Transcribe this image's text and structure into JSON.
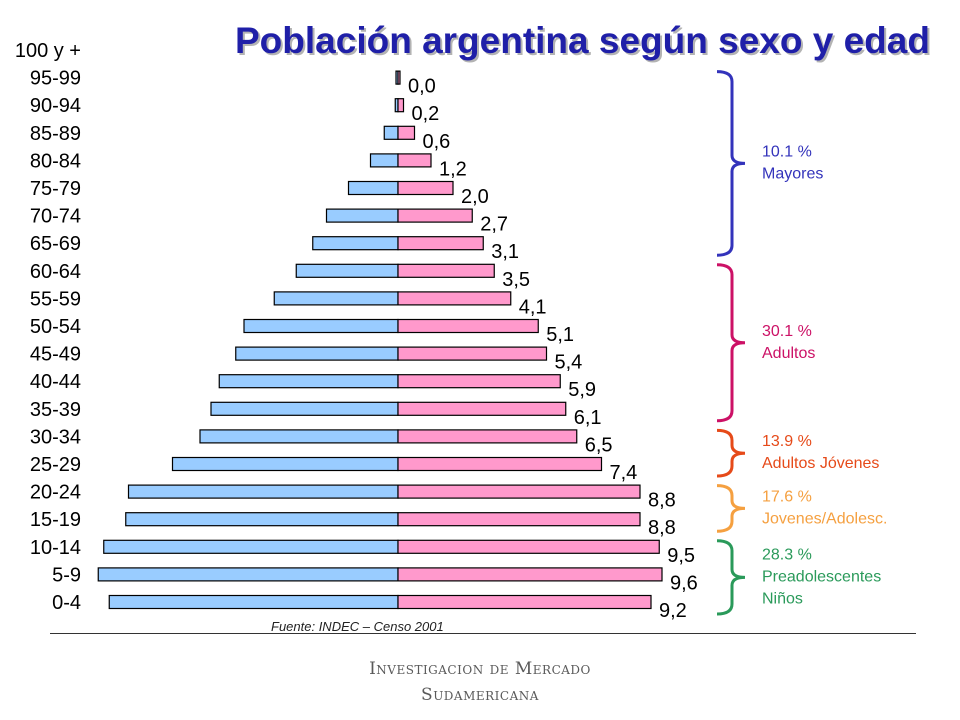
{
  "title": "Población argentina según sexo y edad",
  "source": "Fuente: INDEC – Censo 2001",
  "logo": {
    "line1": "Investigacion de Mercado",
    "line2": "Sudamericana"
  },
  "colors": {
    "male": "#99ccff",
    "female": "#ff99cc",
    "title": "#1f1fa8"
  },
  "chart_data": {
    "type": "bar",
    "categories": [
      "100 y +",
      "95-99",
      "90-94",
      "85-89",
      "80-84",
      "75-79",
      "70-74",
      "65-69",
      "60-64",
      "55-59",
      "50-54",
      "45-49",
      "40-44",
      "35-39",
      "30-34",
      "25-29",
      "20-24",
      "15-19",
      "10-14",
      "5-9",
      "0-4"
    ],
    "series": [
      {
        "values": [
          null,
          0.05,
          0.1,
          0.5,
          1.0,
          1.8,
          2.6,
          3.1,
          3.7,
          4.5,
          5.6,
          5.9,
          6.5,
          6.8,
          7.2,
          8.2,
          9.8,
          9.9,
          10.7,
          10.9,
          10.5
        ]
      },
      {
        "values": [
          null,
          0.0,
          0.2,
          0.6,
          1.2,
          2.0,
          2.7,
          3.1,
          3.5,
          4.1,
          5.1,
          5.4,
          5.9,
          6.1,
          6.5,
          7.4,
          8.8,
          8.8,
          9.5,
          9.6,
          9.2
        ]
      }
    ],
    "value_labels": [
      null,
      "0,0",
      "0,2",
      "0,6",
      "1,2",
      "2,0",
      "2,7",
      "3,1",
      "3,5",
      "4,1",
      "5,1",
      "5,4",
      "5,9",
      "6,1",
      "6,5",
      "7,4",
      "8,8",
      "8,8",
      "9,5",
      "9,6",
      "9,2"
    ],
    "segments": [
      {
        "pct": "10.1 %",
        "label": "Mayores",
        "color": "#3333bb",
        "from": "95-99",
        "to": "65-69"
      },
      {
        "pct": "30.1 %",
        "label": "Adultos",
        "color": "#cc1166",
        "from": "60-64",
        "to": "35-39"
      },
      {
        "pct": "13.9 %",
        "label": "Adultos Jóvenes",
        "color": "#e64a19",
        "from": "30-34",
        "to": "25-29"
      },
      {
        "pct": "17.6 %",
        "label": "Jovenes/Adolesc.",
        "color": "#f5a040",
        "from": "20-24",
        "to": "15-19"
      },
      {
        "pct": "28.3 %",
        "label": "Preadolescentes",
        "label2": "Niños",
        "color": "#2a9a5a",
        "from": "10-14",
        "to": "0-4"
      }
    ]
  }
}
